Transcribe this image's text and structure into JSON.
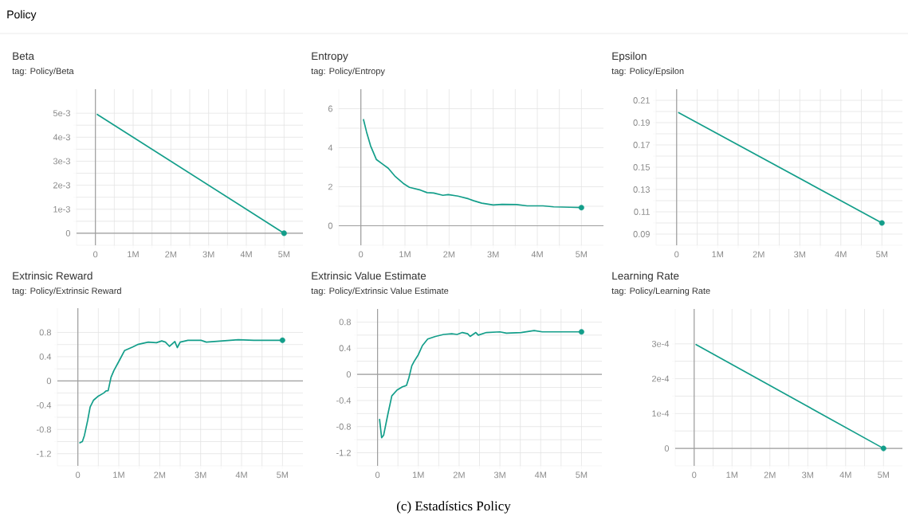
{
  "chart_data": [
    {
      "type": "line",
      "title": "Beta",
      "subtitle": "tag: Policy/Beta",
      "annotations": [
        "Policy",
        "(c) Estadístics Policy"
      ],
      "grid": true,
      "xlim": [
        -500000,
        5500000
      ],
      "ylim": [
        -0.0005,
        0.006
      ],
      "xticks": [
        0,
        {
          "value": 1000000,
          "label": "1M"
        },
        {
          "value": 2000000,
          "label": "2M"
        },
        {
          "value": 3000000,
          "label": "3M"
        },
        {
          "value": 4000000,
          "label": "4M"
        },
        {
          "value": 5000000,
          "label": "5M"
        }
      ],
      "yticks": [
        0,
        {
          "value": 0.001,
          "label": "1e-3"
        },
        {
          "value": 0.002,
          "label": "2e-3"
        },
        {
          "value": 0.003,
          "label": "3e-3"
        },
        {
          "value": 0.004,
          "label": "4e-3"
        },
        {
          "value": 0.005,
          "label": "5e-3"
        }
      ],
      "series": [
        {
          "color": "#139e8a",
          "x": [
            50000,
            5000000
          ],
          "values": [
            0.00495,
            0
          ]
        },
        {
          "type": "scatter",
          "color": "#139e8a",
          "x": [
            5000000
          ],
          "values": [
            0
          ]
        }
      ]
    },
    {
      "type": "line",
      "title": "Entropy",
      "subtitle": "tag: Policy/Entropy",
      "grid": true,
      "xlim": [
        -500000,
        5500000
      ],
      "ylim": [
        -1,
        7
      ],
      "xticks": [
        0,
        {
          "value": 1000000,
          "label": "1M"
        },
        {
          "value": 2000000,
          "label": "2M"
        },
        {
          "value": 3000000,
          "label": "3M"
        },
        {
          "value": 4000000,
          "label": "4M"
        },
        {
          "value": 5000000,
          "label": "5M"
        }
      ],
      "yticks": [
        0,
        2,
        4,
        6
      ],
      "series": [
        {
          "color": "#139e8a",
          "x": [
            60000,
            130000,
            220000,
            350000,
            500000,
            620000,
            770000,
            980000,
            1100000,
            1350000,
            1500000,
            1650000,
            1860000,
            1980000,
            2200000,
            2440000,
            2560000,
            2740000,
            3000000,
            3200000,
            3530000,
            3770000,
            4130000,
            4370000,
            4740000,
            5000000
          ],
          "values": [
            5.44,
            4.8,
            4.1,
            3.4,
            3.15,
            2.95,
            2.55,
            2.14,
            1.97,
            1.83,
            1.7,
            1.68,
            1.56,
            1.6,
            1.52,
            1.38,
            1.28,
            1.16,
            1.07,
            1.1,
            1.09,
            1.02,
            1.02,
            0.97,
            0.95,
            0.93
          ]
        },
        {
          "type": "scatter",
          "color": "#139e8a",
          "x": [
            5000000
          ],
          "values": [
            0.93
          ]
        }
      ]
    },
    {
      "type": "line",
      "title": "Epsilon",
      "subtitle": "tag: Policy/Epsilon",
      "grid": true,
      "xlim": [
        -500000,
        5500000
      ],
      "ylim": [
        0.08,
        0.22
      ],
      "xticks": [
        0,
        {
          "value": 1000000,
          "label": "1M"
        },
        {
          "value": 2000000,
          "label": "2M"
        },
        {
          "value": 3000000,
          "label": "3M"
        },
        {
          "value": 4000000,
          "label": "4M"
        },
        {
          "value": 5000000,
          "label": "5M"
        }
      ],
      "yticks": [
        0.09,
        0.11,
        0.13,
        0.15,
        0.17,
        0.19,
        0.21
      ],
      "series": [
        {
          "color": "#139e8a",
          "x": [
            50000,
            5000000
          ],
          "values": [
            0.199,
            0.1
          ]
        },
        {
          "type": "scatter",
          "color": "#139e8a",
          "x": [
            5000000
          ],
          "values": [
            0.1
          ]
        }
      ]
    },
    {
      "type": "line",
      "title": "Extrinsic Reward",
      "subtitle": "tag: Policy/Extrinsic Reward",
      "grid": true,
      "xlim": [
        -500000,
        5500000
      ],
      "ylim": [
        -1.4,
        1.2
      ],
      "xticks": [
        0,
        {
          "value": 1000000,
          "label": "1M"
        },
        {
          "value": 2000000,
          "label": "2M"
        },
        {
          "value": 3000000,
          "label": "3M"
        },
        {
          "value": 4000000,
          "label": "4M"
        },
        {
          "value": 5000000,
          "label": "5M"
        }
      ],
      "yticks": [
        -1.2,
        -0.8,
        -0.4,
        0,
        0.4,
        0.8
      ],
      "series": [
        {
          "color": "#139e8a",
          "x": [
            50000,
            110000,
            160000,
            240000,
            300000,
            380000,
            500000,
            630000,
            690000,
            740000,
            810000,
            880000,
            1000000,
            1140000,
            1340000,
            1460000,
            1720000,
            1920000,
            2050000,
            2140000,
            2240000,
            2370000,
            2430000,
            2500000,
            2690000,
            3010000,
            3140000,
            3530000,
            3920000,
            4300000,
            4690000,
            5000000
          ],
          "values": [
            -1.02,
            -1.0,
            -0.9,
            -0.65,
            -0.43,
            -0.32,
            -0.25,
            -0.2,
            -0.165,
            -0.16,
            0.06,
            0.17,
            0.32,
            0.5,
            0.56,
            0.6,
            0.64,
            0.63,
            0.66,
            0.64,
            0.57,
            0.65,
            0.55,
            0.64,
            0.67,
            0.67,
            0.64,
            0.66,
            0.68,
            0.67,
            0.67,
            0.67
          ]
        },
        {
          "type": "scatter",
          "color": "#139e8a",
          "x": [
            5000000
          ],
          "values": [
            0.67
          ]
        }
      ]
    },
    {
      "type": "line",
      "title": "Extrinsic Value Estimate",
      "subtitle": "tag: Policy/Extrinsic Value Estimate",
      "grid": true,
      "xlim": [
        -500000,
        5500000
      ],
      "ylim": [
        -1.4,
        1.0
      ],
      "xticks": [
        0,
        {
          "value": 1000000,
          "label": "1M"
        },
        {
          "value": 2000000,
          "label": "2M"
        },
        {
          "value": 3000000,
          "label": "3M"
        },
        {
          "value": 4000000,
          "label": "4M"
        },
        {
          "value": 5000000,
          "label": "5M"
        }
      ],
      "yticks": [
        -1.2,
        -0.8,
        -0.4,
        0,
        0.4,
        0.8
      ],
      "series": [
        {
          "color": "#139e8a",
          "x": [
            50000,
            100000,
            150000,
            250000,
            350000,
            480000,
            610000,
            710000,
            770000,
            840000,
            900000,
            1000000,
            1100000,
            1230000,
            1420000,
            1620000,
            1820000,
            1950000,
            2080000,
            2210000,
            2270000,
            2410000,
            2470000,
            2670000,
            3000000,
            3160000,
            3520000,
            3840000,
            4040000,
            4430000,
            5000000
          ],
          "values": [
            -0.69,
            -0.97,
            -0.93,
            -0.62,
            -0.33,
            -0.24,
            -0.19,
            -0.17,
            -0.05,
            0.13,
            0.2,
            0.3,
            0.44,
            0.54,
            0.58,
            0.61,
            0.62,
            0.61,
            0.64,
            0.62,
            0.58,
            0.64,
            0.6,
            0.64,
            0.65,
            0.63,
            0.64,
            0.67,
            0.65,
            0.65,
            0.65
          ]
        },
        {
          "type": "scatter",
          "color": "#139e8a",
          "x": [
            5000000
          ],
          "values": [
            0.65
          ]
        }
      ]
    },
    {
      "type": "line",
      "title": "Learning Rate",
      "subtitle": "tag: Policy/Learning Rate",
      "grid": true,
      "xlim": [
        -500000,
        5500000
      ],
      "ylim": [
        -5e-05,
        0.0004
      ],
      "xticks": [
        0,
        {
          "value": 1000000,
          "label": "1M"
        },
        {
          "value": 2000000,
          "label": "2M"
        },
        {
          "value": 3000000,
          "label": "3M"
        },
        {
          "value": 4000000,
          "label": "4M"
        },
        {
          "value": 5000000,
          "label": "5M"
        }
      ],
      "yticks": [
        0,
        {
          "value": 0.0001,
          "label": "1e-4"
        },
        {
          "value": 0.0002,
          "label": "2e-4"
        },
        {
          "value": 0.0003,
          "label": "3e-4"
        }
      ],
      "series": [
        {
          "color": "#139e8a",
          "x": [
            50000,
            5000000
          ],
          "values": [
            0.000298,
            0
          ]
        },
        {
          "type": "scatter",
          "color": "#139e8a",
          "x": [
            5000000
          ],
          "values": [
            0
          ]
        }
      ]
    }
  ]
}
